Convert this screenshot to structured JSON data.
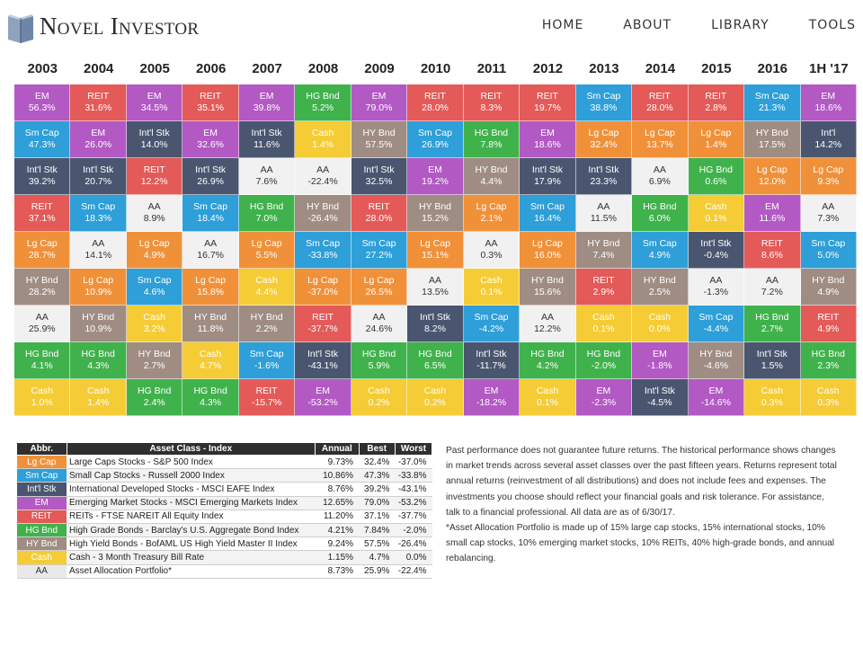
{
  "brand": {
    "name": "Novel Investor",
    "logo_icon": "book-icon"
  },
  "nav": [
    {
      "label": "HOME"
    },
    {
      "label": "ABOUT"
    },
    {
      "label": "LIBRARY"
    },
    {
      "label": "TOOLS"
    }
  ],
  "colors": {
    "EM": "#b259c4",
    "REIT": "#e35a58",
    "Sm Cap": "#2e9fd8",
    "Int'l Stk": "#4a5670",
    "Lg Cap": "#f0913a",
    "HY Bnd": "#9f8d84",
    "AA": "#f1f1f1",
    "HG Bnd": "#40b24c",
    "Cash": "#f5cc35"
  },
  "years": [
    "2003",
    "2004",
    "2005",
    "2006",
    "2007",
    "2008",
    "2009",
    "2010",
    "2011",
    "2012",
    "2013",
    "2014",
    "2015",
    "2016",
    "1H '17"
  ],
  "grid": [
    [
      [
        "EM",
        "56.3%"
      ],
      [
        "Sm Cap",
        "47.3%"
      ],
      [
        "Int'l Stk",
        "39.2%"
      ],
      [
        "REIT",
        "37.1%"
      ],
      [
        "Lg Cap",
        "28.7%"
      ],
      [
        "HY Bnd",
        "28.2%"
      ],
      [
        "AA",
        "25.9%"
      ],
      [
        "HG Bnd",
        "4.1%"
      ],
      [
        "Cash",
        "1.0%"
      ]
    ],
    [
      [
        "REIT",
        "31.6%"
      ],
      [
        "EM",
        "26.0%"
      ],
      [
        "Int'l Stk",
        "20.7%"
      ],
      [
        "Sm Cap",
        "18.3%"
      ],
      [
        "AA",
        "14.1%"
      ],
      [
        "Lg Cap",
        "10.9%"
      ],
      [
        "HY Bnd",
        "10.9%"
      ],
      [
        "HG Bnd",
        "4.3%"
      ],
      [
        "Cash",
        "1.4%"
      ]
    ],
    [
      [
        "EM",
        "34.5%"
      ],
      [
        "Int'l Stk",
        "14.0%"
      ],
      [
        "REIT",
        "12.2%"
      ],
      [
        "AA",
        "8.9%"
      ],
      [
        "Lg Cap",
        "4.9%"
      ],
      [
        "Sm Cap",
        "4.6%"
      ],
      [
        "Cash",
        "3.2%"
      ],
      [
        "HY Bnd",
        "2.7%"
      ],
      [
        "HG Bnd",
        "2.4%"
      ]
    ],
    [
      [
        "REIT",
        "35.1%"
      ],
      [
        "EM",
        "32.6%"
      ],
      [
        "Int'l Stk",
        "26.9%"
      ],
      [
        "Sm Cap",
        "18.4%"
      ],
      [
        "AA",
        "16.7%"
      ],
      [
        "Lg Cap",
        "15.8%"
      ],
      [
        "HY Bnd",
        "11.8%"
      ],
      [
        "Cash",
        "4.7%"
      ],
      [
        "HG Bnd",
        "4.3%"
      ]
    ],
    [
      [
        "EM",
        "39.8%"
      ],
      [
        "Int'l Stk",
        "11.6%"
      ],
      [
        "AA",
        "7.6%"
      ],
      [
        "HG Bnd",
        "7.0%"
      ],
      [
        "Lg Cap",
        "5.5%"
      ],
      [
        "Cash",
        "4.4%"
      ],
      [
        "HY Bnd",
        "2.2%"
      ],
      [
        "Sm Cap",
        "-1.6%"
      ],
      [
        "REIT",
        "-15.7%"
      ]
    ],
    [
      [
        "HG Bnd",
        "5.2%"
      ],
      [
        "Cash",
        "1.4%"
      ],
      [
        "AA",
        "-22.4%"
      ],
      [
        "HY Bnd",
        "-26.4%"
      ],
      [
        "Sm Cap",
        "-33.8%"
      ],
      [
        "Lg Cap",
        "-37.0%"
      ],
      [
        "REIT",
        "-37.7%"
      ],
      [
        "Int'l Stk",
        "-43.1%"
      ],
      [
        "EM",
        "-53.2%"
      ]
    ],
    [
      [
        "EM",
        "79.0%"
      ],
      [
        "HY Bnd",
        "57.5%"
      ],
      [
        "Int'l Stk",
        "32.5%"
      ],
      [
        "REIT",
        "28.0%"
      ],
      [
        "Sm Cap",
        "27.2%"
      ],
      [
        "Lg Cap",
        "26.5%"
      ],
      [
        "AA",
        "24.6%"
      ],
      [
        "HG Bnd",
        "5.9%"
      ],
      [
        "Cash",
        "0.2%"
      ]
    ],
    [
      [
        "REIT",
        "28.0%"
      ],
      [
        "Sm Cap",
        "26.9%"
      ],
      [
        "EM",
        "19.2%"
      ],
      [
        "HY Bnd",
        "15.2%"
      ],
      [
        "Lg Cap",
        "15.1%"
      ],
      [
        "AA",
        "13.5%"
      ],
      [
        "Int'l Stk",
        "8.2%"
      ],
      [
        "HG Bnd",
        "6.5%"
      ],
      [
        "Cash",
        "0.2%"
      ]
    ],
    [
      [
        "REIT",
        "8.3%"
      ],
      [
        "HG Bnd",
        "7.8%"
      ],
      [
        "HY Bnd",
        "4.4%"
      ],
      [
        "Lg Cap",
        "2.1%"
      ],
      [
        "AA",
        "0.3%"
      ],
      [
        "Cash",
        "0.1%"
      ],
      [
        "Sm Cap",
        "-4.2%"
      ],
      [
        "Int'l Stk",
        "-11.7%"
      ],
      [
        "EM",
        "-18.2%"
      ]
    ],
    [
      [
        "REIT",
        "19.7%"
      ],
      [
        "EM",
        "18.6%"
      ],
      [
        "Int'l Stk",
        "17.9%"
      ],
      [
        "Sm Cap",
        "16.4%"
      ],
      [
        "Lg Cap",
        "16.0%"
      ],
      [
        "HY Bnd",
        "15.6%"
      ],
      [
        "AA",
        "12.2%"
      ],
      [
        "HG Bnd",
        "4.2%"
      ],
      [
        "Cash",
        "0.1%"
      ]
    ],
    [
      [
        "Sm Cap",
        "38.8%"
      ],
      [
        "Lg Cap",
        "32.4%"
      ],
      [
        "Int'l Stk",
        "23.3%"
      ],
      [
        "AA",
        "11.5%"
      ],
      [
        "HY Bnd",
        "7.4%"
      ],
      [
        "REIT",
        "2.9%"
      ],
      [
        "Cash",
        "0.1%"
      ],
      [
        "HG Bnd",
        "-2.0%"
      ],
      [
        "EM",
        "-2.3%"
      ]
    ],
    [
      [
        "REIT",
        "28.0%"
      ],
      [
        "Lg Cap",
        "13.7%"
      ],
      [
        "AA",
        "6.9%"
      ],
      [
        "HG Bnd",
        "6.0%"
      ],
      [
        "Sm Cap",
        "4.9%"
      ],
      [
        "HY Bnd",
        "2.5%"
      ],
      [
        "Cash",
        "0.0%"
      ],
      [
        "EM",
        "-1.8%"
      ],
      [
        "Int'l Stk",
        "-4.5%"
      ]
    ],
    [
      [
        "REIT",
        "2.8%"
      ],
      [
        "Lg Cap",
        "1.4%"
      ],
      [
        "HG Bnd",
        "0.6%"
      ],
      [
        "Cash",
        "0.1%"
      ],
      [
        "Int'l Stk",
        "-0.4%"
      ],
      [
        "AA",
        "-1.3%"
      ],
      [
        "Sm Cap",
        "-4.4%"
      ],
      [
        "HY Bnd",
        "-4.6%"
      ],
      [
        "EM",
        "-14.6%"
      ]
    ],
    [
      [
        "Sm Cap",
        "21.3%"
      ],
      [
        "HY Bnd",
        "17.5%"
      ],
      [
        "Lg Cap",
        "12.0%"
      ],
      [
        "EM",
        "11.6%"
      ],
      [
        "REIT",
        "8.6%"
      ],
      [
        "AA",
        "7.2%"
      ],
      [
        "HG Bnd",
        "2.7%"
      ],
      [
        "Int'l Stk",
        "1.5%"
      ],
      [
        "Cash",
        "0.3%"
      ]
    ],
    [
      [
        "EM",
        "18.6%"
      ],
      [
        "Int'l",
        "14.2%"
      ],
      [
        "Lg Cap",
        "9.3%"
      ],
      [
        "AA",
        "7.3%"
      ],
      [
        "Sm Cap",
        "5.0%"
      ],
      [
        "HY Bnd",
        "4.9%"
      ],
      [
        "REIT",
        "4.9%"
      ],
      [
        "HG Bnd",
        "2.3%"
      ],
      [
        "Cash",
        "0.3%"
      ]
    ]
  ],
  "legend": {
    "headers": [
      "Abbr.",
      "Asset Class - Index",
      "Annual",
      "Best",
      "Worst"
    ],
    "rows": [
      {
        "abbr": "Lg Cap",
        "name": "Large Caps Stocks - S&P 500 Index",
        "annual": "9.73%",
        "best": "32.4%",
        "worst": "-37.0%"
      },
      {
        "abbr": "Sm Cap",
        "name": "Small Cap Stocks - Russell 2000 Index",
        "annual": "10.86%",
        "best": "47.3%",
        "worst": "-33.8%"
      },
      {
        "abbr": "Int'l Stk",
        "name": "International Developed Stocks - MSCI EAFE Index",
        "annual": "8.76%",
        "best": "39.2%",
        "worst": "-43.1%"
      },
      {
        "abbr": "EM",
        "name": "Emerging Market Stocks - MSCI Emerging Markets Index",
        "annual": "12.65%",
        "best": "79.0%",
        "worst": "-53.2%"
      },
      {
        "abbr": "REIT",
        "name": "REITs - FTSE NAREIT All Equity Index",
        "annual": "11.20%",
        "best": "37.1%",
        "worst": "-37.7%"
      },
      {
        "abbr": "HG Bnd",
        "name": "High Grade Bonds - Barclay's U.S. Aggregate Bond Index",
        "annual": "4.21%",
        "best": "7.84%",
        "worst": "-2.0%"
      },
      {
        "abbr": "HY Bnd",
        "name": "High Yield Bonds - BofAML US High Yield Master II Index",
        "annual": "9.24%",
        "best": "57.5%",
        "worst": "-26.4%"
      },
      {
        "abbr": "Cash",
        "name": "Cash - 3 Month Treasury Bill Rate",
        "annual": "1.15%",
        "best": "4.7%",
        "worst": "0.0%"
      },
      {
        "abbr": "AA",
        "name": "Asset Allocation Portfolio*",
        "annual": "8.73%",
        "best": "25.9%",
        "worst": "-22.4%"
      }
    ]
  },
  "disclaimer": {
    "p1": "Past performance does not guarantee future returns. The historical performance shows changes in market trends across several asset classes over the past fifteen years. Returns represent total annual returns (reinvestment of all distributions) and does not include fees and expenses. The investments you choose should reflect your financial goals and risk tolerance. For assistance, talk to a financial professional. All data are as of 6/30/17.",
    "p2": "*Asset Allocation Portfolio is made up of 15% large cap stocks, 15% international stocks, 10% small cap stocks, 10% emerging market stocks, 10% REITs, 40% high-grade bonds, and annual rebalancing."
  }
}
